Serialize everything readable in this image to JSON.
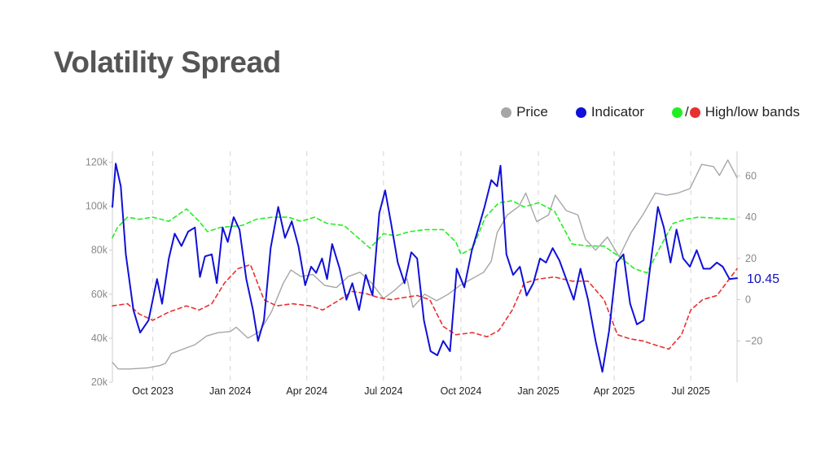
{
  "title": "Volatility Spread",
  "legend": {
    "price": {
      "label": "Price",
      "color": "#a6a6a6"
    },
    "indicator": {
      "label": "Indicator",
      "color": "#1010d8"
    },
    "bands": {
      "label": "High/low bands",
      "high_color": "#22ee22",
      "low_color": "#e83030",
      "separator": "/"
    }
  },
  "chart_data": {
    "type": "line",
    "title": "Volatility Spread",
    "xlabel": "",
    "ylabel_left": "",
    "ylabel_right": "",
    "x_range": [
      "2023-08-14",
      "2025-08-25"
    ],
    "x_ticks": [
      {
        "date": "2023-10-01",
        "label": "Oct 2023"
      },
      {
        "date": "2024-01-01",
        "label": "Jan 2024"
      },
      {
        "date": "2024-04-01",
        "label": "Apr 2024"
      },
      {
        "date": "2024-07-01",
        "label": "Jul 2024"
      },
      {
        "date": "2024-10-01",
        "label": "Oct 2024"
      },
      {
        "date": "2025-01-01",
        "label": "Jan 2025"
      },
      {
        "date": "2025-04-01",
        "label": "Apr 2025"
      },
      {
        "date": "2025-07-01",
        "label": "Jul 2025"
      }
    ],
    "y_left": {
      "range": [
        20000,
        125000
      ],
      "ticks": [
        {
          "value": 20000,
          "label": "20k"
        },
        {
          "value": 40000,
          "label": "40k"
        },
        {
          "value": 60000,
          "label": "60k"
        },
        {
          "value": 80000,
          "label": "80k"
        },
        {
          "value": 100000,
          "label": "100k"
        },
        {
          "value": 120000,
          "label": "120k"
        }
      ]
    },
    "y_right": {
      "range": [
        -40,
        72
      ],
      "ticks": [
        {
          "value": -20,
          "label": "−20"
        },
        {
          "value": 0,
          "label": "0"
        },
        {
          "value": 20,
          "label": "20"
        },
        {
          "value": 40,
          "label": "40"
        },
        {
          "value": 60,
          "label": "60"
        }
      ]
    },
    "grid": {
      "vertical_dashed": true,
      "horizontal": false
    },
    "last_value_label": "10.45",
    "series": [
      {
        "name": "Price",
        "axis": "left",
        "color": "#a6a6a6",
        "style": "solid",
        "points": [
          [
            "2023-08-14",
            29000
          ],
          [
            "2023-08-21",
            26000
          ],
          [
            "2023-09-04",
            26000
          ],
          [
            "2023-09-25",
            26500
          ],
          [
            "2023-10-09",
            27500
          ],
          [
            "2023-10-16",
            28500
          ],
          [
            "2023-10-23",
            33000
          ],
          [
            "2023-11-06",
            35000
          ],
          [
            "2023-11-20",
            37000
          ],
          [
            "2023-12-04",
            41000
          ],
          [
            "2023-12-18",
            42500
          ],
          [
            "2024-01-01",
            43000
          ],
          [
            "2024-01-08",
            45000
          ],
          [
            "2024-01-22",
            40000
          ],
          [
            "2024-02-05",
            43000
          ],
          [
            "2024-02-19",
            52000
          ],
          [
            "2024-03-04",
            65000
          ],
          [
            "2024-03-13",
            71000
          ],
          [
            "2024-03-25",
            68000
          ],
          [
            "2024-04-08",
            69000
          ],
          [
            "2024-04-22",
            64000
          ],
          [
            "2024-05-06",
            63000
          ],
          [
            "2024-05-20",
            68000
          ],
          [
            "2024-06-03",
            70000
          ],
          [
            "2024-06-17",
            65000
          ],
          [
            "2024-07-01",
            58000
          ],
          [
            "2024-07-15",
            62000
          ],
          [
            "2024-07-29",
            67000
          ],
          [
            "2024-08-05",
            54000
          ],
          [
            "2024-08-19",
            60000
          ],
          [
            "2024-09-02",
            57000
          ],
          [
            "2024-09-16",
            60000
          ],
          [
            "2024-09-30",
            64000
          ],
          [
            "2024-10-14",
            67000
          ],
          [
            "2024-10-28",
            70000
          ],
          [
            "2024-11-06",
            75000
          ],
          [
            "2024-11-13",
            88000
          ],
          [
            "2024-11-25",
            96000
          ],
          [
            "2024-12-09",
            100000
          ],
          [
            "2024-12-17",
            106000
          ],
          [
            "2024-12-30",
            93000
          ],
          [
            "2025-01-13",
            96000
          ],
          [
            "2025-01-21",
            105000
          ],
          [
            "2025-02-03",
            98000
          ],
          [
            "2025-02-17",
            96000
          ],
          [
            "2025-02-26",
            85000
          ],
          [
            "2025-03-10",
            80000
          ],
          [
            "2025-03-24",
            86000
          ],
          [
            "2025-04-07",
            77000
          ],
          [
            "2025-04-21",
            88000
          ],
          [
            "2025-05-05",
            96000
          ],
          [
            "2025-05-20",
            106000
          ],
          [
            "2025-06-02",
            105000
          ],
          [
            "2025-06-16",
            106000
          ],
          [
            "2025-06-30",
            108000
          ],
          [
            "2025-07-14",
            119000
          ],
          [
            "2025-07-28",
            118000
          ],
          [
            "2025-08-04",
            114000
          ],
          [
            "2025-08-14",
            121000
          ],
          [
            "2025-08-25",
            113000
          ]
        ]
      },
      {
        "name": "Indicator",
        "axis": "right",
        "color": "#1010d8",
        "style": "solid",
        "points": [
          [
            "2023-08-14",
            45
          ],
          [
            "2023-08-18",
            66
          ],
          [
            "2023-08-24",
            55
          ],
          [
            "2023-08-30",
            22
          ],
          [
            "2023-09-08",
            -5
          ],
          [
            "2023-09-16",
            -16
          ],
          [
            "2023-09-26",
            -10
          ],
          [
            "2023-10-06",
            10
          ],
          [
            "2023-10-12",
            -2
          ],
          [
            "2023-10-20",
            20
          ],
          [
            "2023-10-27",
            32
          ],
          [
            "2023-11-04",
            26
          ],
          [
            "2023-11-12",
            33
          ],
          [
            "2023-11-20",
            35
          ],
          [
            "2023-11-26",
            11
          ],
          [
            "2023-12-02",
            21
          ],
          [
            "2023-12-10",
            22
          ],
          [
            "2023-12-16",
            8
          ],
          [
            "2023-12-23",
            35
          ],
          [
            "2023-12-29",
            28
          ],
          [
            "2024-01-05",
            40
          ],
          [
            "2024-01-12",
            34
          ],
          [
            "2024-01-20",
            10
          ],
          [
            "2024-01-28",
            -5
          ],
          [
            "2024-02-03",
            -20
          ],
          [
            "2024-02-10",
            -10
          ],
          [
            "2024-02-18",
            25
          ],
          [
            "2024-02-27",
            45
          ],
          [
            "2024-03-06",
            30
          ],
          [
            "2024-03-14",
            38
          ],
          [
            "2024-03-22",
            26
          ],
          [
            "2024-03-30",
            7
          ],
          [
            "2024-04-06",
            16
          ],
          [
            "2024-04-12",
            13
          ],
          [
            "2024-04-19",
            20
          ],
          [
            "2024-04-25",
            10
          ],
          [
            "2024-05-01",
            27
          ],
          [
            "2024-05-10",
            15
          ],
          [
            "2024-05-18",
            0
          ],
          [
            "2024-05-25",
            8
          ],
          [
            "2024-06-02",
            -5
          ],
          [
            "2024-06-10",
            12
          ],
          [
            "2024-06-18",
            2
          ],
          [
            "2024-06-26",
            42
          ],
          [
            "2024-07-03",
            53
          ],
          [
            "2024-07-10",
            37
          ],
          [
            "2024-07-18",
            18
          ],
          [
            "2024-07-26",
            8
          ],
          [
            "2024-08-03",
            23
          ],
          [
            "2024-08-10",
            20
          ],
          [
            "2024-08-18",
            -10
          ],
          [
            "2024-08-26",
            -25
          ],
          [
            "2024-09-03",
            -27
          ],
          [
            "2024-09-10",
            -20
          ],
          [
            "2024-09-18",
            -25
          ],
          [
            "2024-09-26",
            15
          ],
          [
            "2024-10-05",
            6
          ],
          [
            "2024-10-14",
            24
          ],
          [
            "2024-10-22",
            35
          ],
          [
            "2024-10-29",
            45
          ],
          [
            "2024-11-06",
            58
          ],
          [
            "2024-11-13",
            55
          ],
          [
            "2024-11-17",
            65
          ],
          [
            "2024-11-24",
            22
          ],
          [
            "2024-12-02",
            12
          ],
          [
            "2024-12-10",
            16
          ],
          [
            "2024-12-18",
            2
          ],
          [
            "2024-12-26",
            8
          ],
          [
            "2025-01-03",
            20
          ],
          [
            "2025-01-10",
            18
          ],
          [
            "2025-01-18",
            25
          ],
          [
            "2025-01-26",
            19
          ],
          [
            "2025-02-03",
            10
          ],
          [
            "2025-02-12",
            0
          ],
          [
            "2025-02-20",
            15
          ],
          [
            "2025-03-01",
            0
          ],
          [
            "2025-03-10",
            -20
          ],
          [
            "2025-03-18",
            -35
          ],
          [
            "2025-03-26",
            -15
          ],
          [
            "2025-04-04",
            18
          ],
          [
            "2025-04-12",
            22
          ],
          [
            "2025-04-20",
            -2
          ],
          [
            "2025-04-28",
            -12
          ],
          [
            "2025-05-06",
            -10
          ],
          [
            "2025-05-15",
            20
          ],
          [
            "2025-05-23",
            45
          ],
          [
            "2025-05-30",
            35
          ],
          [
            "2025-06-07",
            18
          ],
          [
            "2025-06-14",
            34
          ],
          [
            "2025-06-22",
            20
          ],
          [
            "2025-06-30",
            16
          ],
          [
            "2025-07-08",
            24
          ],
          [
            "2025-07-16",
            15
          ],
          [
            "2025-07-24",
            15
          ],
          [
            "2025-08-01",
            18
          ],
          [
            "2025-08-08",
            16
          ],
          [
            "2025-08-16",
            10
          ],
          [
            "2025-08-25",
            10.45
          ]
        ]
      },
      {
        "name": "High band",
        "axis": "right",
        "color": "#22ee22",
        "style": "dashed",
        "points": [
          [
            "2023-08-14",
            30
          ],
          [
            "2023-08-20",
            35
          ],
          [
            "2023-09-01",
            40
          ],
          [
            "2023-09-15",
            39
          ],
          [
            "2023-10-01",
            40
          ],
          [
            "2023-10-20",
            38
          ],
          [
            "2023-11-10",
            44
          ],
          [
            "2023-11-25",
            38
          ],
          [
            "2023-12-05",
            33
          ],
          [
            "2023-12-20",
            35
          ],
          [
            "2024-01-15",
            36
          ],
          [
            "2024-02-01",
            39
          ],
          [
            "2024-02-20",
            40
          ],
          [
            "2024-03-10",
            40
          ],
          [
            "2024-03-25",
            38
          ],
          [
            "2024-04-10",
            40
          ],
          [
            "2024-04-25",
            37
          ],
          [
            "2024-05-15",
            36
          ],
          [
            "2024-06-01",
            30
          ],
          [
            "2024-06-15",
            25
          ],
          [
            "2024-07-01",
            32
          ],
          [
            "2024-07-15",
            31
          ],
          [
            "2024-08-01",
            33
          ],
          [
            "2024-08-20",
            34
          ],
          [
            "2024-09-10",
            34
          ],
          [
            "2024-09-25",
            28
          ],
          [
            "2024-10-01",
            22
          ],
          [
            "2024-10-15",
            25
          ],
          [
            "2024-10-30",
            40
          ],
          [
            "2024-11-15",
            47
          ],
          [
            "2024-12-01",
            48
          ],
          [
            "2024-12-15",
            45
          ],
          [
            "2025-01-01",
            47
          ],
          [
            "2025-01-20",
            43
          ],
          [
            "2025-02-10",
            27
          ],
          [
            "2025-03-01",
            26
          ],
          [
            "2025-03-20",
            26
          ],
          [
            "2025-04-10",
            20
          ],
          [
            "2025-04-25",
            15
          ],
          [
            "2025-05-10",
            13
          ],
          [
            "2025-05-25",
            25
          ],
          [
            "2025-06-10",
            37
          ],
          [
            "2025-06-25",
            39
          ],
          [
            "2025-07-10",
            40
          ],
          [
            "2025-08-25",
            39
          ]
        ]
      },
      {
        "name": "Low band",
        "axis": "right",
        "color": "#e83030",
        "style": "dashed",
        "points": [
          [
            "2023-08-14",
            -3
          ],
          [
            "2023-09-01",
            -2
          ],
          [
            "2023-09-15",
            -7
          ],
          [
            "2023-10-01",
            -10
          ],
          [
            "2023-10-20",
            -6
          ],
          [
            "2023-11-10",
            -3
          ],
          [
            "2023-11-25",
            -5
          ],
          [
            "2023-12-10",
            -2
          ],
          [
            "2023-12-25",
            8
          ],
          [
            "2024-01-10",
            15
          ],
          [
            "2024-01-25",
            17
          ],
          [
            "2024-02-10",
            0
          ],
          [
            "2024-02-25",
            -3
          ],
          [
            "2024-03-15",
            -2
          ],
          [
            "2024-04-05",
            -3
          ],
          [
            "2024-04-20",
            -5
          ],
          [
            "2024-05-10",
            0
          ],
          [
            "2024-05-25",
            4
          ],
          [
            "2024-06-10",
            3
          ],
          [
            "2024-06-25",
            1
          ],
          [
            "2024-07-10",
            0
          ],
          [
            "2024-07-25",
            1
          ],
          [
            "2024-08-10",
            2
          ],
          [
            "2024-08-25",
            0
          ],
          [
            "2024-09-10",
            -13
          ],
          [
            "2024-09-25",
            -17
          ],
          [
            "2024-10-15",
            -16
          ],
          [
            "2024-11-01",
            -18
          ],
          [
            "2024-11-15",
            -15
          ],
          [
            "2024-12-01",
            -5
          ],
          [
            "2024-12-15",
            8
          ],
          [
            "2025-01-01",
            10
          ],
          [
            "2025-01-20",
            11
          ],
          [
            "2025-02-10",
            9
          ],
          [
            "2025-03-01",
            9
          ],
          [
            "2025-03-20",
            0
          ],
          [
            "2025-04-05",
            -17
          ],
          [
            "2025-04-20",
            -19
          ],
          [
            "2025-05-05",
            -20
          ],
          [
            "2025-05-20",
            -22
          ],
          [
            "2025-06-05",
            -24
          ],
          [
            "2025-06-20",
            -17
          ],
          [
            "2025-07-01",
            -5
          ],
          [
            "2025-07-15",
            0
          ],
          [
            "2025-08-01",
            2
          ],
          [
            "2025-08-25",
            15
          ]
        ]
      }
    ]
  }
}
